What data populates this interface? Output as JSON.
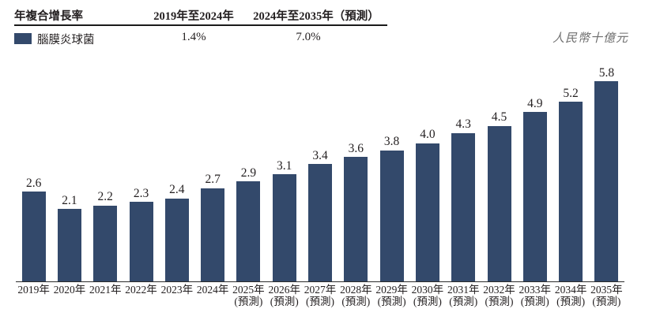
{
  "header": {
    "metric_label": "年複合增長率",
    "period1_label": "2019年至2024年",
    "period2_label": "2024年至2035年（預測）",
    "legend": {
      "name": "腦膜炎球菌",
      "period1_value": "1.4%",
      "period2_value": "7.0%"
    },
    "unit_label": "人民幣十億元"
  },
  "colors": {
    "bar": "#33496B",
    "text": "#231F20",
    "axis": "#2B2B2B",
    "unit_text": "#6E6E6E"
  },
  "chart_data": {
    "type": "bar",
    "series_name": "腦膜炎球菌",
    "unit": "人民幣十億元",
    "categories": [
      "2019年",
      "2020年",
      "2021年",
      "2022年",
      "2023年",
      "2024年",
      "2025年",
      "2026年",
      "2027年",
      "2028年",
      "2029年",
      "2030年",
      "2031年",
      "2032年",
      "2033年",
      "2034年",
      "2035年"
    ],
    "forecast_from_index": 6,
    "forecast_suffix": "(預測)",
    "values": [
      2.6,
      2.1,
      2.2,
      2.3,
      2.4,
      2.7,
      2.9,
      3.1,
      3.4,
      3.6,
      3.8,
      4.0,
      4.3,
      4.5,
      4.9,
      5.2,
      5.8
    ],
    "value_labels": [
      "2.6",
      "2.1",
      "2.2",
      "2.3",
      "2.4",
      "2.7",
      "2.9",
      "3.1",
      "3.4",
      "3.6",
      "3.8",
      "4.0",
      "4.3",
      "4.5",
      "4.9",
      "5.2",
      "5.8"
    ],
    "cagr_2019_2024": "1.4%",
    "cagr_2024_2035_forecast": "7.0%",
    "ylim": [
      0,
      6
    ],
    "grid": false,
    "legend_position": "top-left",
    "value_labels_shown": true
  }
}
